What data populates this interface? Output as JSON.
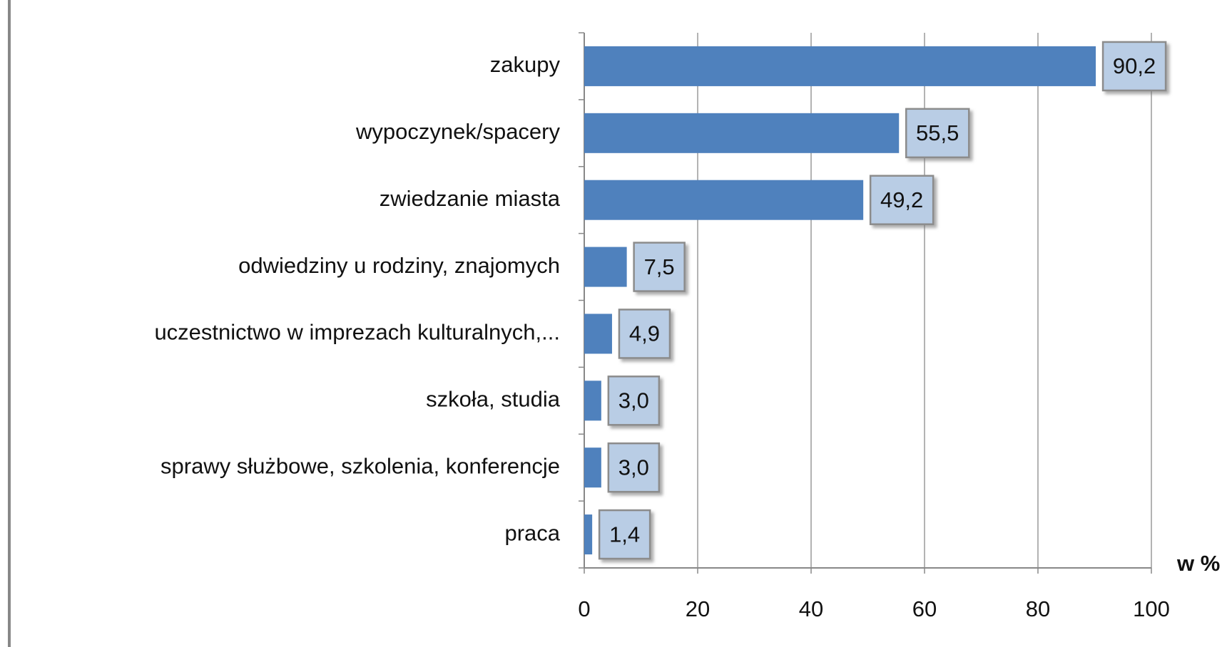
{
  "chart_data": {
    "type": "barh",
    "categories": [
      "zakupy",
      "wypoczynek/spacery",
      "zwiedzanie miasta",
      "odwiedziny u rodziny, znajomych",
      "uczestnictwo w imprezach kulturalnych,...",
      "szkoła, studia",
      "sprawy służbowe, szkolenia, konferencje",
      "praca"
    ],
    "values": [
      90.2,
      55.5,
      49.2,
      7.5,
      4.9,
      3.0,
      3.0,
      1.4
    ],
    "value_labels": [
      "90,2",
      "55,5",
      "49,2",
      "7,5",
      "4,9",
      "3,0",
      "3,0",
      "1,4"
    ],
    "color": "#4f81bd",
    "xlabel": "w %",
    "xlim": [
      0,
      100
    ],
    "xticks": [
      0,
      20,
      40,
      60,
      80,
      100
    ],
    "grid": true
  }
}
